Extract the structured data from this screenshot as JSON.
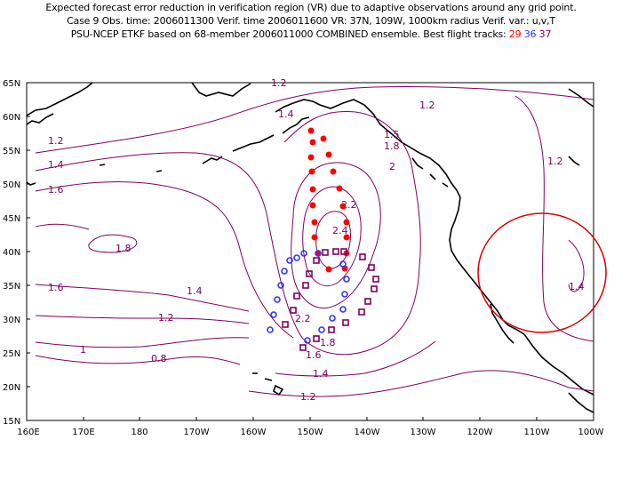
{
  "title": {
    "line1": "Expected forecast error reduction in verification region (VR) due to adaptive observations around any grid point.",
    "line2": "Case 9   Obs. time: 2006011300   Verif. time 2006011600   VR: 37N, 109W, 1000km radius   Verif. var.: u,v,T",
    "line3_prefix": "PSU-NCEP ETKF based on 68-member 2006011000 COMBINED ensemble.   Best flight tracks:",
    "track_red": "29",
    "track_blue": "36",
    "track_purple": "37"
  },
  "axes": {
    "lat_labels": [
      "65N",
      "60N",
      "55N",
      "50N",
      "45N",
      "40N",
      "35N",
      "30N",
      "25N",
      "20N",
      "15N"
    ],
    "lon_labels": [
      "160E",
      "170E",
      "180",
      "170W",
      "160W",
      "150W",
      "140W",
      "130W",
      "120W",
      "110W",
      "100W"
    ]
  },
  "contour_labels": [
    "1.2",
    "1.4",
    "1.2",
    "1.5",
    "1.8",
    "1.2",
    "1.4",
    "1.6",
    "2",
    "2.2",
    "2.4",
    "1.8",
    "1.6",
    "1.4",
    "1.2",
    "1.2",
    "1.4",
    "1",
    "0.8",
    "2.2",
    "1.8",
    "1.6",
    "1.4",
    "1.2"
  ],
  "colors": {
    "contour": "#800060",
    "red_track": "#ff0000",
    "blue_track": "#3333ff",
    "purple_track": "#800060",
    "vr_circle": "#dd0000",
    "coast": "#000000"
  }
}
